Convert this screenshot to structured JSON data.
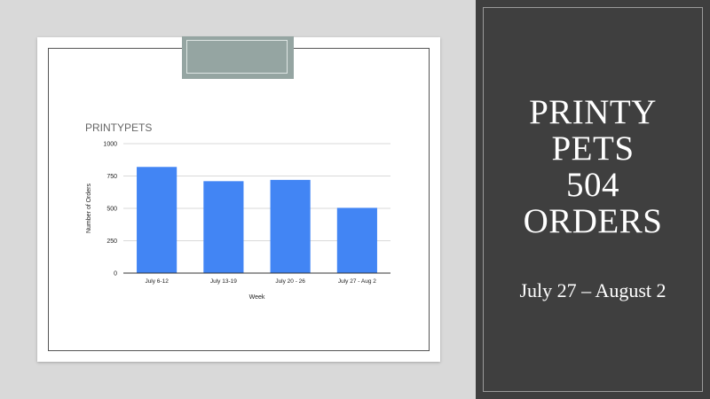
{
  "slide": {
    "title_lines": [
      "PRINTY",
      "PETS",
      "504",
      "ORDERS"
    ],
    "subtitle": "July 27 – August 2"
  },
  "colors": {
    "bar": "#4285f4",
    "panel": "#3f3f3f",
    "tab": "#95a5a2"
  },
  "chart_data": {
    "type": "bar",
    "title": "PRINTYPETS",
    "xlabel": "Week",
    "ylabel": "Number of Orders",
    "categories": [
      "July 6-12",
      "July 13-19",
      "July 20 - 26",
      "July 27 - Aug 2"
    ],
    "values": [
      820,
      710,
      720,
      504
    ],
    "ylim": [
      0,
      1000
    ],
    "yticks": [
      0,
      250,
      500,
      750,
      1000
    ],
    "grid": true,
    "legend": "none"
  }
}
